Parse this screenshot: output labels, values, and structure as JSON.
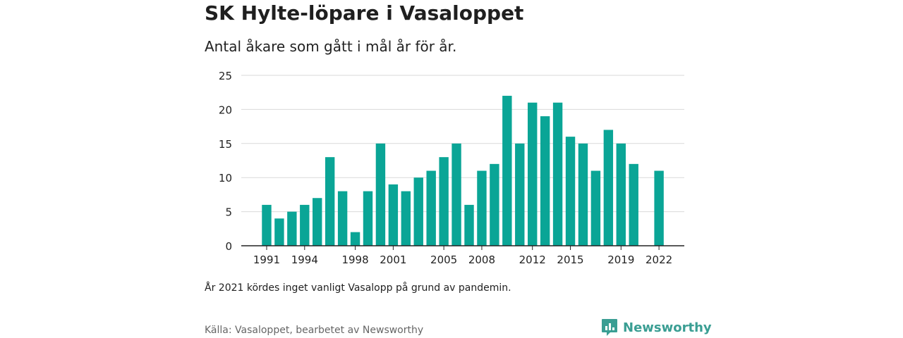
{
  "title": "SK Hylte-löpare i Vasaloppet",
  "subtitle": "Antal åkare som gått i mål år för år.",
  "note": "År 2021 kördes inget vanligt Vasalopp på grund av pandemin.",
  "source": "Källa: Vasaloppet, bearbetet av Newsworthy",
  "brand": "Newsworthy",
  "colors": {
    "bar": "#0aa596",
    "brand": "#3a9e93",
    "grid": "#d9d9d9",
    "axis": "#222222"
  },
  "chart_data": {
    "type": "bar",
    "title": "SK Hylte-löpare i Vasaloppet",
    "subtitle": "Antal åkare som gått i mål år för år.",
    "xlabel": "",
    "ylabel": "",
    "ylim": [
      0,
      25
    ],
    "yticks": [
      0,
      5,
      10,
      15,
      20,
      25
    ],
    "xtick_labels": [
      "1991",
      "1994",
      "1998",
      "2001",
      "2005",
      "2008",
      "2012",
      "2015",
      "2019",
      "2022"
    ],
    "grid": true,
    "legend": "none",
    "categories": [
      1991,
      1992,
      1993,
      1994,
      1995,
      1996,
      1997,
      1998,
      1999,
      2000,
      2001,
      2002,
      2003,
      2004,
      2005,
      2006,
      2007,
      2008,
      2009,
      2010,
      2011,
      2012,
      2013,
      2014,
      2015,
      2016,
      2017,
      2018,
      2019,
      2020,
      2021,
      2022
    ],
    "values": [
      6,
      4,
      5,
      6,
      7,
      13,
      8,
      2,
      8,
      15,
      9,
      8,
      10,
      11,
      13,
      15,
      6,
      11,
      12,
      22,
      15,
      21,
      19,
      21,
      16,
      15,
      11,
      17,
      15,
      12,
      null,
      11
    ]
  }
}
